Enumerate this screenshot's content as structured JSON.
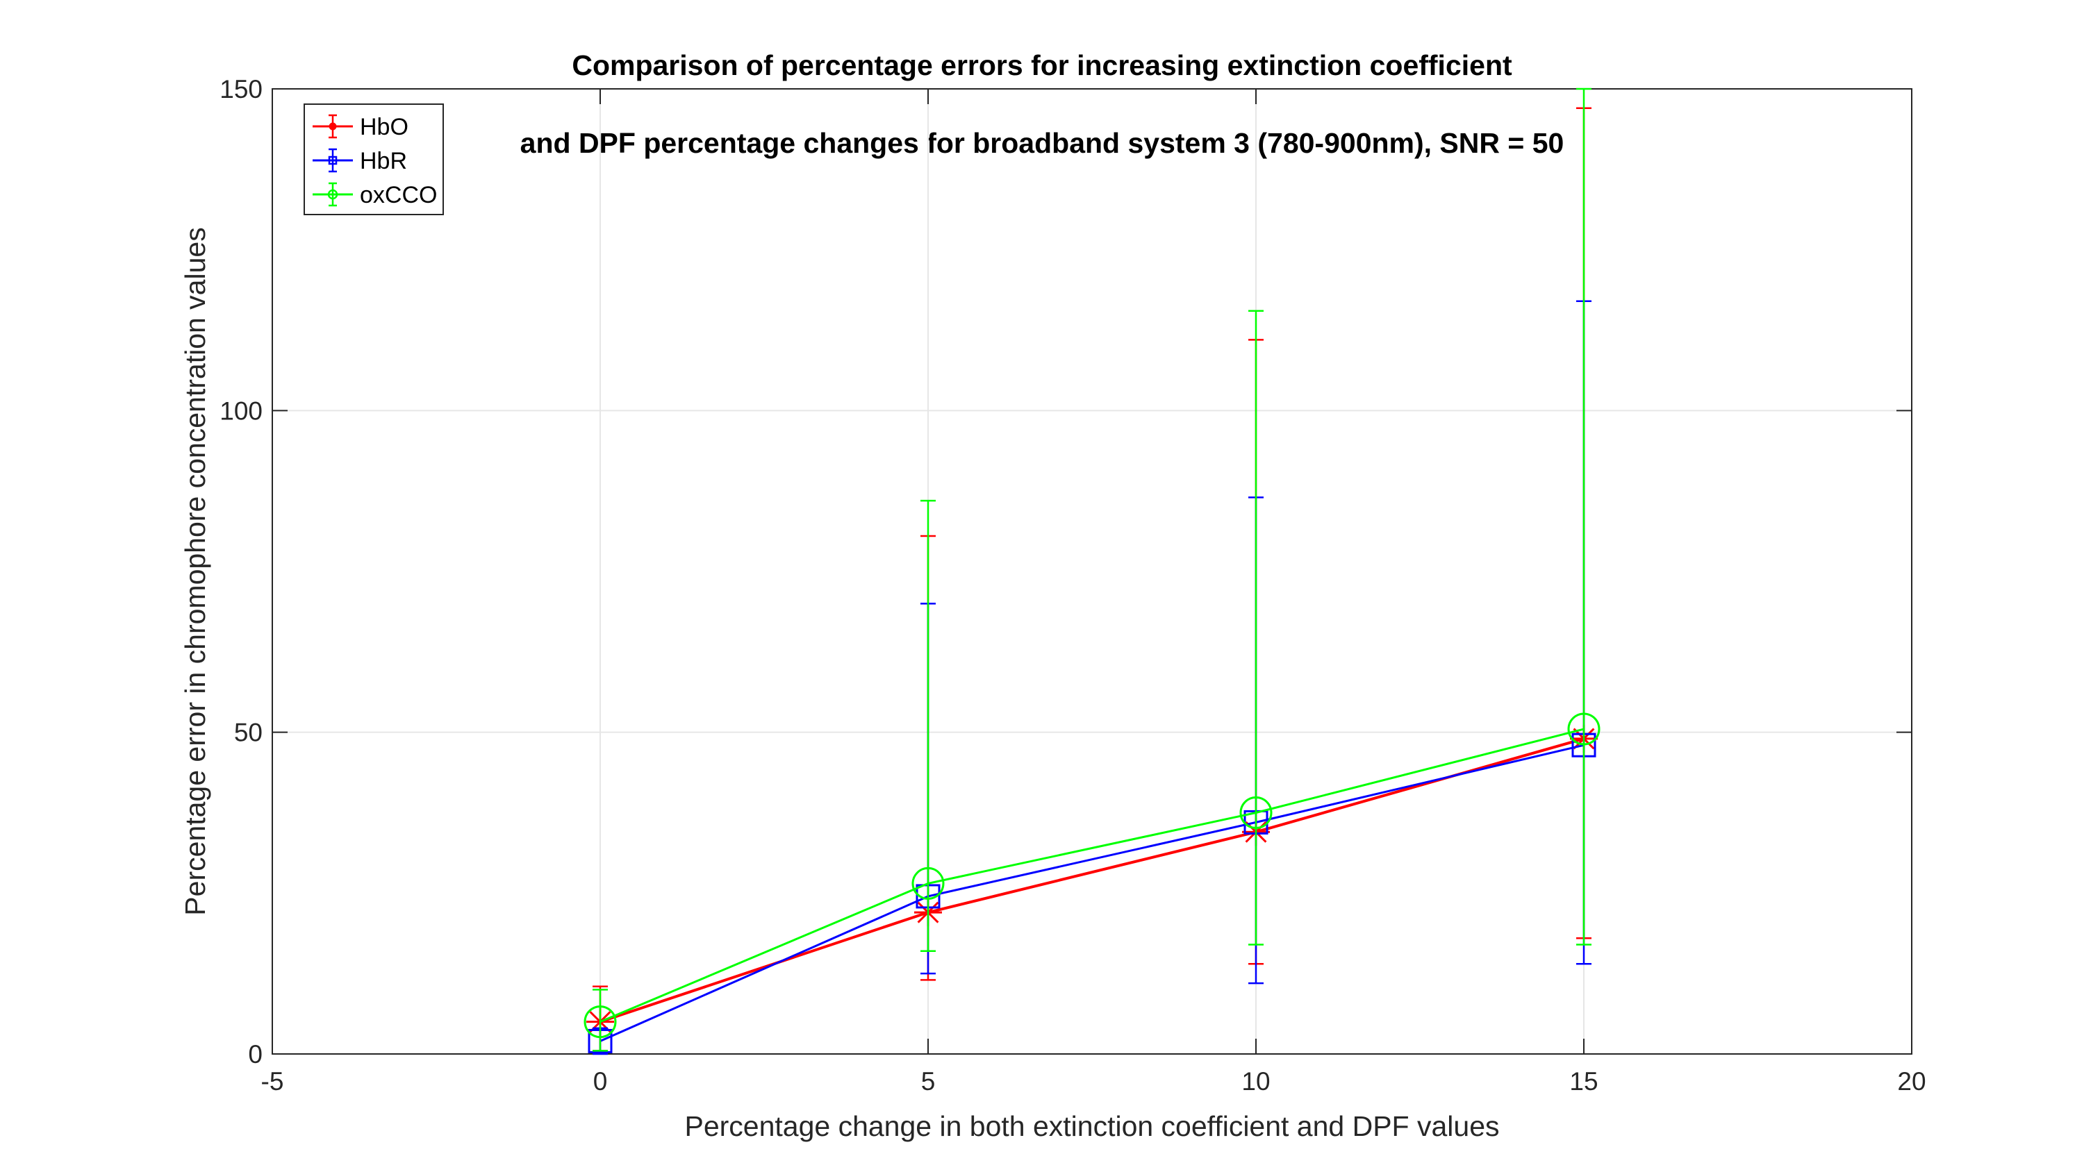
{
  "chart_data": {
    "type": "line",
    "title_line1": "Comparison of percentage errors for increasing extinction coefficient",
    "title_line2": "and DPF percentage changes for broadband system 3 (780-900nm), SNR = 50",
    "xlabel": "Percentage change in both extinction coefficient and DPF values",
    "ylabel": "Percentage error in chromophore concentration values",
    "xlim": [
      -5,
      20
    ],
    "ylim": [
      0,
      150
    ],
    "xticks": [
      -5,
      0,
      5,
      10,
      15,
      20
    ],
    "yticks": [
      0,
      50,
      100,
      150
    ],
    "grid": true,
    "legend_position": "top-left",
    "x": [
      0,
      5,
      10,
      15
    ],
    "series": [
      {
        "name": "HbO",
        "color": "#ff0000",
        "marker": "asterisk",
        "values": [
          5,
          22,
          34.5,
          49
        ],
        "err_low": [
          0.5,
          11.5,
          14,
          18
        ],
        "err_high": [
          10.5,
          80.5,
          111,
          147
        ]
      },
      {
        "name": "HbR",
        "color": "#0000ff",
        "marker": "square",
        "values": [
          2,
          24.5,
          36,
          48
        ],
        "err_low": [
          0,
          12.5,
          11,
          14
        ],
        "err_high": [
          4,
          70,
          86.5,
          117
        ]
      },
      {
        "name": "oxCCO",
        "color": "#00ff00",
        "marker": "circle",
        "values": [
          5,
          26.5,
          37.5,
          50.5
        ],
        "err_low": [
          0.5,
          16,
          17,
          17
        ],
        "err_high": [
          10,
          86,
          115.5,
          150
        ]
      }
    ]
  }
}
